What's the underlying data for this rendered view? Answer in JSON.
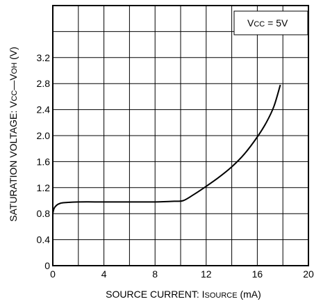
{
  "chart_data": {
    "type": "line",
    "xlabel": "SOURCE  CURRENT: ISOURCE (mA)",
    "ylabel": "SATURATION VOLTAGE: VCC—VOH (V)",
    "xlim": [
      0,
      20
    ],
    "ylim": [
      0,
      4
    ],
    "x_ticks": [
      0,
      4,
      8,
      12,
      16,
      20
    ],
    "y_ticks": [
      0,
      0.4,
      0.8,
      1.2,
      1.6,
      2.0,
      2.4,
      2.8,
      3.2
    ],
    "x_tick_labels": [
      "0",
      "4",
      "8",
      "12",
      "16",
      "20"
    ],
    "y_tick_labels": [
      "0",
      "0.4",
      "0.8",
      "1.2",
      "1.6",
      "2.0",
      "2.4",
      "2.8",
      "3.2"
    ],
    "grid": true,
    "annotation": "VCC = 5V",
    "series": [
      {
        "x": [
          0.0,
          0.1,
          0.3,
          0.6,
          1.0,
          2.0,
          4.0,
          6.0,
          8.0,
          9.5,
          10.2,
          11.0,
          12.0,
          13.0,
          14.0,
          15.0,
          16.0,
          16.7,
          17.3,
          17.8
        ],
        "y": [
          0.8,
          0.88,
          0.93,
          0.96,
          0.97,
          0.98,
          0.98,
          0.98,
          0.98,
          0.99,
          1.0,
          1.09,
          1.22,
          1.36,
          1.52,
          1.72,
          1.98,
          2.2,
          2.45,
          2.78
        ]
      }
    ]
  }
}
